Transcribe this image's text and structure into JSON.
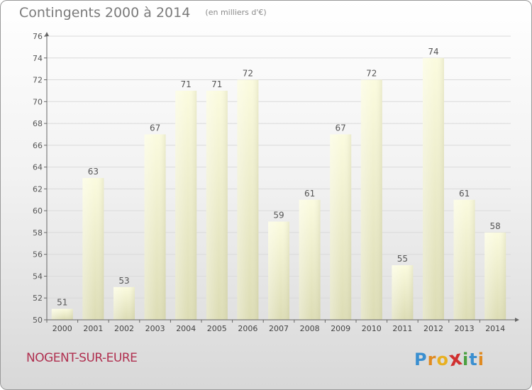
{
  "chart_data": {
    "type": "bar",
    "title": "Contingents 2000 à 2014",
    "subtitle": "(en milliers d'€)",
    "categories": [
      "2000",
      "2001",
      "2002",
      "2003",
      "2004",
      "2005",
      "2006",
      "2007",
      "2008",
      "2009",
      "2010",
      "2011",
      "2012",
      "2013",
      "2014"
    ],
    "values": [
      51,
      63,
      53,
      67,
      71,
      71,
      72,
      59,
      61,
      67,
      72,
      55,
      74,
      61,
      58
    ],
    "ylim": [
      50,
      76
    ],
    "yticks": [
      50,
      52,
      54,
      56,
      58,
      60,
      62,
      64,
      66,
      68,
      70,
      72,
      74,
      76
    ],
    "xlabel": "",
    "ylabel": "",
    "grid": "horizontal",
    "bar_color": "#f2f2c8"
  },
  "footer": {
    "town": "NOGENT-SUR-EURE",
    "logo_letters": [
      "P",
      "r",
      "o",
      "x",
      "i",
      "t",
      "i"
    ],
    "logo_colors": [
      "#3a8fd0",
      "#e08a20",
      "#e8b020",
      "#d03030",
      "#4aa040",
      "#3a8fd0",
      "#e08a20"
    ]
  }
}
